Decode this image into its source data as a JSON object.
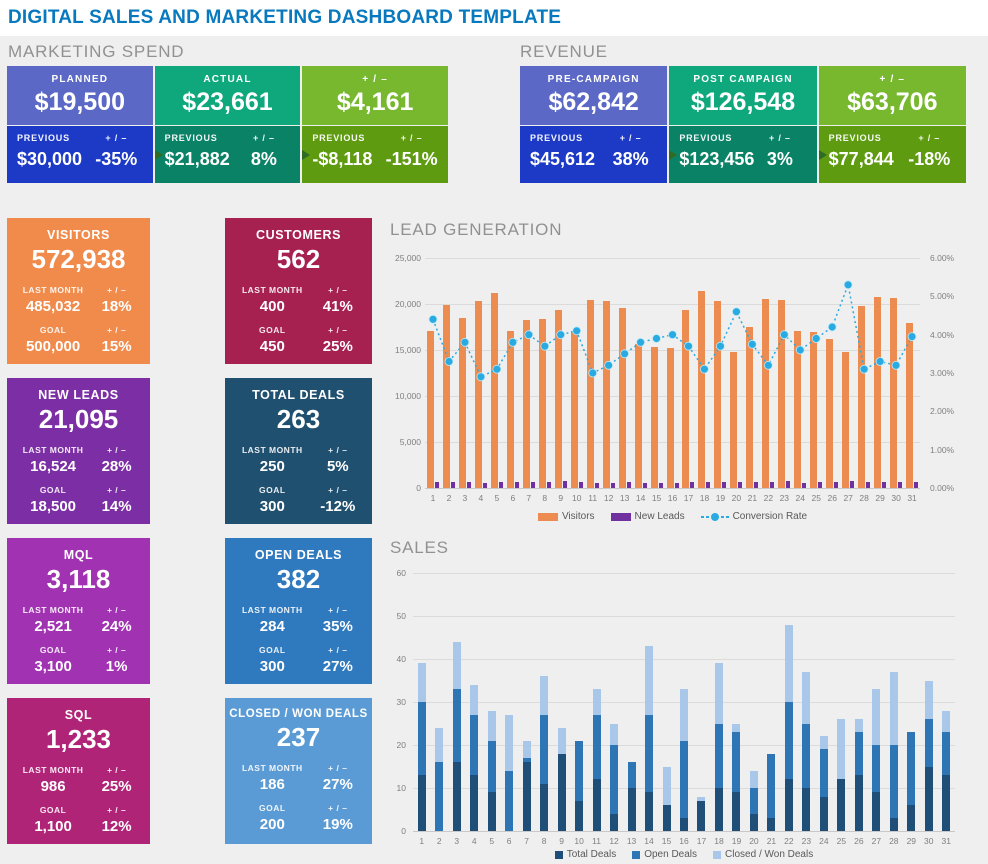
{
  "page_title": "DIGITAL SALES AND MARKETING DASHBOARD TEMPLATE",
  "colors": {
    "title_blue": "#0879BE",
    "background": "#EFEFEF",
    "section_header_gray": "#919191",
    "note_flag_green": "#2F6B22"
  },
  "labels": {
    "previous": "PREVIOUS",
    "plus_minus": "+ / –",
    "last_month": "LAST MONTH",
    "goal": "GOAL"
  },
  "sections": {
    "marketing_spend": "MARKETING SPEND",
    "revenue": "REVENUE",
    "lead_generation": "LEAD GENERATION",
    "sales": "SALES"
  },
  "spend_cards": [
    {
      "label": "PLANNED",
      "value": "$19,500",
      "prev_value": "$30,000",
      "prev_delta": "-35%",
      "top_color": "#5B68C5",
      "bottom_color": "#1C3AC6",
      "note": false
    },
    {
      "label": "ACTUAL",
      "value": "$23,661",
      "prev_value": "$21,882",
      "prev_delta": "8%",
      "top_color": "#0FA87C",
      "bottom_color": "#0A8266",
      "note": true
    },
    {
      "label": "+ / –",
      "value": "$4,161",
      "prev_value": "-$8,118",
      "prev_delta": "-151%",
      "top_color": "#77B82E",
      "bottom_color": "#5E9B10",
      "note": true
    }
  ],
  "revenue_cards": [
    {
      "label": "PRE-CAMPAIGN",
      "value": "$62,842",
      "prev_value": "$45,612",
      "prev_delta": "38%",
      "top_color": "#5B68C5",
      "bottom_color": "#1C3AC6",
      "note": false
    },
    {
      "label": "POST CAMPAIGN",
      "value": "$126,548",
      "prev_value": "$123,456",
      "prev_delta": "3%",
      "top_color": "#0FA87C",
      "bottom_color": "#0A8266",
      "note": true
    },
    {
      "label": "+ / –",
      "value": "$63,706",
      "prev_value": "$77,844",
      "prev_delta": "-18%",
      "top_color": "#77B82E",
      "bottom_color": "#5E9B10",
      "note": true
    }
  ],
  "tiles": [
    {
      "title": "VISITORS",
      "value": "572,938",
      "last_month": "485,032",
      "lm_delta": "18%",
      "goal": "500,000",
      "goal_delta": "15%",
      "color": "#F08B4C"
    },
    {
      "title": "CUSTOMERS",
      "value": "562",
      "last_month": "400",
      "lm_delta": "41%",
      "goal": "450",
      "goal_delta": "25%",
      "color": "#A62150"
    },
    {
      "title": "NEW LEADS",
      "value": "21,095",
      "last_month": "16,524",
      "lm_delta": "28%",
      "goal": "18,500",
      "goal_delta": "14%",
      "color": "#7C2FA4"
    },
    {
      "title": "TOTAL DEALS",
      "value": "263",
      "last_month": "250",
      "lm_delta": "5%",
      "goal": "300",
      "goal_delta": "-12%",
      "color": "#20506F"
    },
    {
      "title": "MQL",
      "value": "3,118",
      "last_month": "2,521",
      "lm_delta": "24%",
      "goal": "3,100",
      "goal_delta": "1%",
      "color": "#A133B2"
    },
    {
      "title": "OPEN DEALS",
      "value": "382",
      "last_month": "284",
      "lm_delta": "35%",
      "goal": "300",
      "goal_delta": "27%",
      "color": "#2F79BE"
    },
    {
      "title": "SQL",
      "value": "1,233",
      "last_month": "986",
      "lm_delta": "25%",
      "goal": "1,100",
      "goal_delta": "12%",
      "color": "#B02478"
    },
    {
      "title": "CLOSED / WON DEALS",
      "value": "237",
      "last_month": "186",
      "lm_delta": "27%",
      "goal": "200",
      "goal_delta": "19%",
      "color": "#5B9BD5"
    }
  ],
  "chart_data": [
    {
      "type": "bar",
      "subtype": "bar+line-combo",
      "title": "LEAD GENERATION",
      "categories": [
        1,
        2,
        3,
        4,
        5,
        6,
        7,
        8,
        9,
        10,
        11,
        12,
        13,
        14,
        15,
        16,
        17,
        18,
        19,
        20,
        21,
        22,
        23,
        24,
        25,
        26,
        27,
        28,
        29,
        30,
        31
      ],
      "series": [
        {
          "name": "Visitors",
          "type": "bar",
          "axis": "left",
          "color": "#ED8C50",
          "values": [
            17100,
            19900,
            18500,
            20300,
            21200,
            17100,
            18300,
            18400,
            19400,
            17100,
            20400,
            20300,
            19600,
            15600,
            15300,
            15200,
            19300,
            21400,
            20300,
            14800,
            17500,
            20500,
            20400,
            17100,
            17000,
            16200,
            14800,
            19800,
            20800,
            20700,
            17900
          ]
        },
        {
          "name": "New Leads",
          "type": "bar",
          "axis": "left",
          "color": "#7030A0",
          "values": [
            650,
            650,
            650,
            550,
            650,
            600,
            600,
            600,
            800,
            700,
            550,
            550,
            650,
            550,
            550,
            550,
            650,
            700,
            650,
            650,
            600,
            650,
            750,
            550,
            650,
            600,
            800,
            600,
            650,
            700,
            650
          ]
        },
        {
          "name": "Conversion Rate",
          "type": "line",
          "axis": "right",
          "color": "#29ABE2",
          "style": "dotted-with-markers",
          "values": [
            4.4,
            3.3,
            3.8,
            2.9,
            3.1,
            3.8,
            4.0,
            3.7,
            4.0,
            4.1,
            3.0,
            3.2,
            3.5,
            3.8,
            3.9,
            4.0,
            3.7,
            3.1,
            3.7,
            4.6,
            3.75,
            3.2,
            4.0,
            3.6,
            3.9,
            4.2,
            5.3,
            3.1,
            3.3,
            3.2,
            3.95
          ]
        }
      ],
      "left_axis": {
        "min": 0,
        "max": 25000,
        "ticks": [
          "25,000",
          "20,000",
          "15,000",
          "10,000",
          "5,000",
          "0"
        ]
      },
      "right_axis": {
        "min": 0,
        "max": 6,
        "ticks": [
          "6.00%",
          "5.00%",
          "4.00%",
          "3.00%",
          "2.00%",
          "1.00%",
          "0.00%"
        ]
      },
      "grid": true,
      "legend_position": "bottom"
    },
    {
      "type": "bar",
      "subtype": "stacked-bar",
      "title": "SALES",
      "categories": [
        1,
        2,
        3,
        4,
        5,
        6,
        7,
        8,
        9,
        10,
        11,
        12,
        13,
        14,
        15,
        16,
        17,
        18,
        19,
        20,
        21,
        22,
        23,
        24,
        25,
        26,
        27,
        28,
        29,
        30,
        31
      ],
      "series": [
        {
          "name": "Total Deals",
          "color": "#1F4E79",
          "values": [
            13,
            0,
            16,
            13,
            9,
            0,
            16,
            11,
            18,
            7,
            12,
            4,
            10,
            9,
            6,
            3,
            7,
            10,
            9,
            4,
            3,
            12,
            10,
            8,
            12,
            13,
            9,
            3,
            6,
            15,
            13
          ]
        },
        {
          "name": "Open Deals",
          "color": "#2E75B6",
          "values": [
            17,
            16,
            17,
            14,
            12,
            14,
            1,
            16,
            0,
            14,
            15,
            16,
            6,
            18,
            0,
            18,
            0,
            15,
            14,
            6,
            15,
            18,
            15,
            11,
            0,
            10,
            11,
            17,
            17,
            11,
            10
          ]
        },
        {
          "name": "Closed / Won Deals",
          "color": "#A9C7E9",
          "values": [
            9,
            8,
            11,
            7,
            7,
            13,
            4,
            9,
            6,
            0,
            6,
            5,
            0,
            16,
            9,
            12,
            1,
            14,
            2,
            4,
            0,
            18,
            12,
            3,
            14,
            3,
            13,
            17,
            0,
            9,
            5
          ]
        }
      ],
      "left_axis": {
        "min": 0,
        "max": 60,
        "ticks": [
          "60",
          "50",
          "40",
          "30",
          "20",
          "10",
          "0"
        ]
      },
      "grid": true,
      "legend_position": "bottom"
    }
  ]
}
